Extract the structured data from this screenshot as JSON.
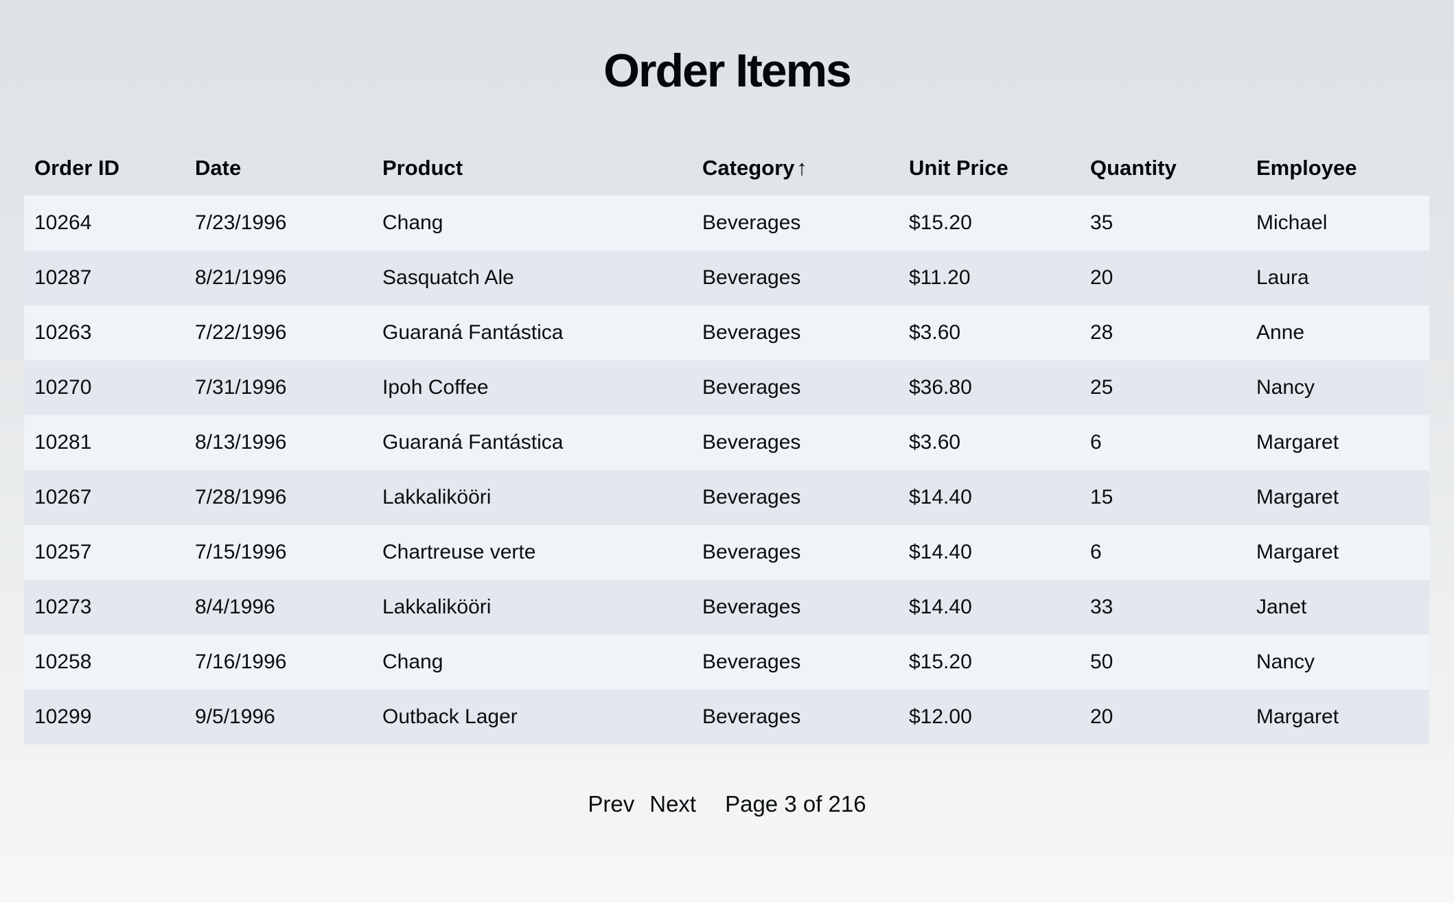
{
  "page": {
    "title": "Order Items",
    "background_top_color": "#dee2e4",
    "background_bottom_color": "#f6f7f7"
  },
  "table": {
    "columns": [
      {
        "key": "order_id",
        "label": "Order ID"
      },
      {
        "key": "date",
        "label": "Date"
      },
      {
        "key": "product",
        "label": "Product"
      },
      {
        "key": "category",
        "label": "Category",
        "sorted": "ascending",
        "sort_indicator": "↑"
      },
      {
        "key": "unit_price",
        "label": "Unit Price"
      },
      {
        "key": "quantity",
        "label": "Quantity"
      },
      {
        "key": "employee",
        "label": "Employee"
      }
    ],
    "rows": [
      [
        "10264",
        "7/23/1996",
        "Chang",
        "Beverages",
        "$15.20",
        "35",
        "Michael"
      ],
      [
        "10287",
        "8/21/1996",
        "Sasquatch Ale",
        "Beverages",
        "$11.20",
        "20",
        "Laura"
      ],
      [
        "10263",
        "7/22/1996",
        "Guaraná Fantástica",
        "Beverages",
        "$3.60",
        "28",
        "Anne"
      ],
      [
        "10270",
        "7/31/1996",
        "Ipoh Coffee",
        "Beverages",
        "$36.80",
        "25",
        "Nancy"
      ],
      [
        "10281",
        "8/13/1996",
        "Guaraná Fantástica",
        "Beverages",
        "$3.60",
        "6",
        "Margaret"
      ],
      [
        "10267",
        "7/28/1996",
        "Lakkalikööri",
        "Beverages",
        "$14.40",
        "15",
        "Margaret"
      ],
      [
        "10257",
        "7/15/1996",
        "Chartreuse verte",
        "Beverages",
        "$14.40",
        "6",
        "Margaret"
      ],
      [
        "10273",
        "8/4/1996",
        "Lakkalikööri",
        "Beverages",
        "$14.40",
        "33",
        "Janet"
      ],
      [
        "10258",
        "7/16/1996",
        "Chang",
        "Beverages",
        "$15.20",
        "50",
        "Nancy"
      ],
      [
        "10299",
        "9/5/1996",
        "Outback Lager",
        "Beverages",
        "$12.00",
        "20",
        "Margaret"
      ]
    ],
    "row_stripe_odd_color": "#f0f4f9",
    "row_stripe_even_color": "#e3e7ee"
  },
  "pagination": {
    "prev_label": "Prev",
    "next_label": "Next",
    "status": "Page 3 of 216",
    "current_page": "3",
    "total_pages": "216"
  }
}
